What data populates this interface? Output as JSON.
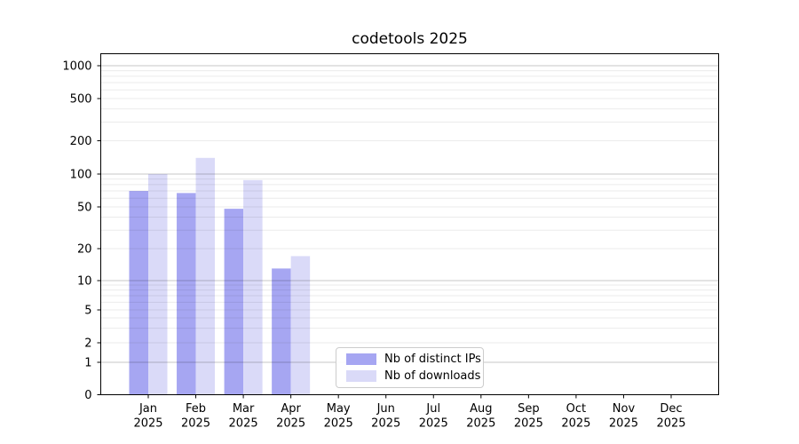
{
  "chart_data": {
    "type": "bar",
    "title": "codetools 2025",
    "year_label": "2025",
    "months": [
      "Jan",
      "Feb",
      "Mar",
      "Apr",
      "May",
      "Jun",
      "Jul",
      "Aug",
      "Sep",
      "Oct",
      "Nov",
      "Dec"
    ],
    "series": [
      {
        "name": "Nb of distinct IPs",
        "color": "#a6a6f2",
        "values": [
          70,
          67,
          48,
          13,
          0,
          0,
          0,
          0,
          0,
          0,
          0,
          0
        ]
      },
      {
        "name": "Nb of downloads",
        "color": "#dadaf8",
        "values": [
          100,
          140,
          88,
          17,
          0,
          0,
          0,
          0,
          0,
          0,
          0,
          0
        ]
      }
    ],
    "y_ticks": [
      0,
      1,
      2,
      5,
      10,
      20,
      50,
      100,
      200,
      500,
      1000
    ],
    "y_scale": "symlog",
    "ylim": [
      0,
      1300
    ],
    "grid": true,
    "legend_position": "lower center",
    "xlabel": "",
    "ylabel": ""
  }
}
